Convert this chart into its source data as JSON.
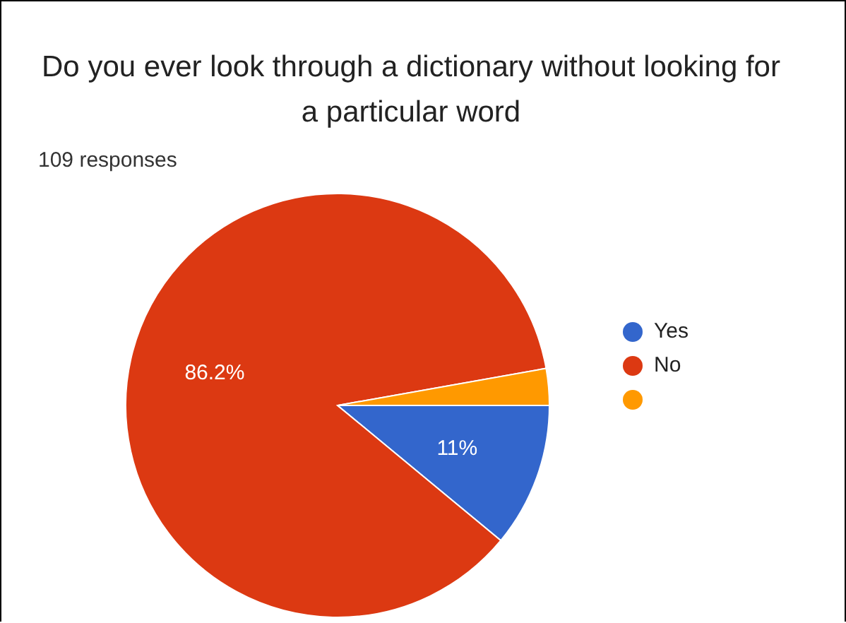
{
  "chart_data": {
    "type": "pie",
    "title": "Do you ever look through a dictionary without looking for a particular word",
    "subtitle": "109 responses",
    "categories": [
      "Yes",
      "No",
      null
    ],
    "values": [
      11,
      86.2,
      2.8
    ],
    "colors": [
      "#3366cc",
      "#dc3912",
      "#ff9900"
    ],
    "value_labels": [
      "11%",
      "86.2%",
      null
    ],
    "legend": "right"
  }
}
